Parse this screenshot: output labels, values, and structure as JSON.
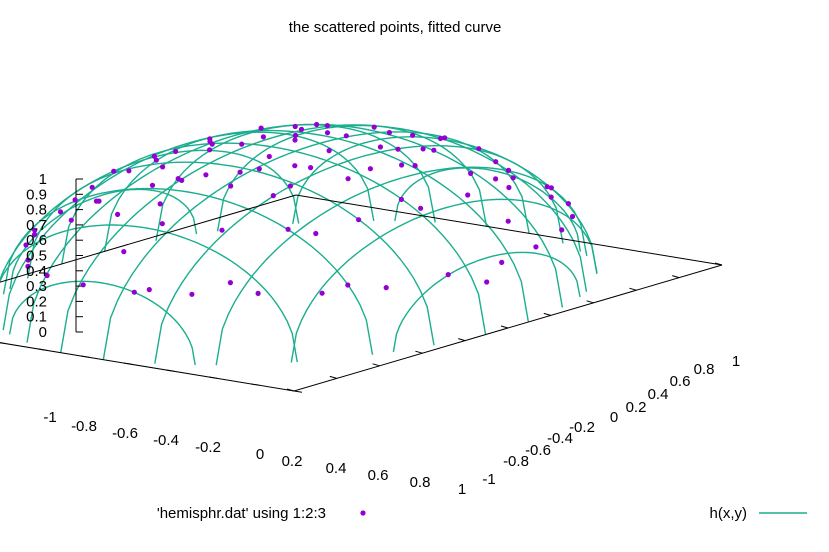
{
  "chart_data": {
    "type": "scatter",
    "title": "the scattered points, fitted curve",
    "xlabel": "",
    "ylabel": "",
    "zlabel": "",
    "xlim": [
      -1,
      1
    ],
    "ylim": [
      -1,
      1
    ],
    "zlim": [
      0,
      1
    ],
    "x_ticks": [
      "-1",
      "-0.8",
      "-0.6",
      "-0.4",
      "-0.2",
      "0",
      "0.2",
      "0.4",
      "0.6",
      "0.8",
      "1"
    ],
    "y_ticks": [
      "-1",
      "-0.8",
      "-0.6",
      "-0.4",
      "-0.2",
      "0",
      "0.2",
      "0.4",
      "0.6",
      "0.8",
      "1"
    ],
    "z_ticks": [
      "0",
      "0.1",
      "0.2",
      "0.3",
      "0.4",
      "0.5",
      "0.6",
      "0.7",
      "0.8",
      "0.9",
      "1"
    ],
    "series": [
      {
        "name": "'hemisphr.dat' using 1:2:3",
        "kind": "points",
        "color": "#9400d3",
        "points": [
          [
            -0.72,
            -0.55,
            0.42
          ],
          [
            -0.61,
            -0.68,
            0.4
          ],
          [
            -0.45,
            -0.8,
            0.38
          ],
          [
            -0.3,
            -0.86,
            0.41
          ],
          [
            -0.1,
            -0.92,
            0.38
          ],
          [
            0.12,
            -0.9,
            0.41
          ],
          [
            0.33,
            -0.85,
            0.42
          ],
          [
            0.52,
            -0.76,
            0.39
          ],
          [
            0.68,
            -0.62,
            0.4
          ],
          [
            0.8,
            -0.45,
            0.41
          ],
          [
            0.88,
            -0.25,
            0.4
          ],
          [
            0.92,
            -0.05,
            0.39
          ],
          [
            0.9,
            0.18,
            0.4
          ],
          [
            0.83,
            0.4,
            0.39
          ],
          [
            0.71,
            0.58,
            0.4
          ],
          [
            0.55,
            0.72,
            0.42
          ],
          [
            0.36,
            0.84,
            0.42
          ],
          [
            0.15,
            0.9,
            0.41
          ],
          [
            -0.08,
            0.91,
            0.41
          ],
          [
            -0.3,
            0.86,
            0.4
          ],
          [
            -0.5,
            0.75,
            0.41
          ],
          [
            -0.66,
            0.6,
            0.41
          ],
          [
            -0.8,
            0.42,
            0.4
          ],
          [
            -0.88,
            0.22,
            0.42
          ],
          [
            -0.92,
            0.0,
            0.39
          ],
          [
            -0.89,
            -0.22,
            0.41
          ],
          [
            -0.82,
            -0.4,
            0.42
          ],
          [
            -0.55,
            -0.4,
            0.73
          ],
          [
            -0.4,
            -0.55,
            0.73
          ],
          [
            -0.2,
            -0.64,
            0.74
          ],
          [
            0.0,
            -0.68,
            0.73
          ],
          [
            0.22,
            -0.64,
            0.73
          ],
          [
            0.42,
            -0.52,
            0.74
          ],
          [
            0.58,
            -0.36,
            0.73
          ],
          [
            0.66,
            -0.15,
            0.73
          ],
          [
            0.67,
            0.08,
            0.74
          ],
          [
            0.6,
            0.3,
            0.74
          ],
          [
            0.47,
            0.5,
            0.73
          ],
          [
            0.28,
            0.62,
            0.73
          ],
          [
            0.05,
            0.67,
            0.74
          ],
          [
            -0.18,
            0.65,
            0.74
          ],
          [
            -0.38,
            0.55,
            0.74
          ],
          [
            -0.55,
            0.4,
            0.73
          ],
          [
            -0.65,
            0.2,
            0.73
          ],
          [
            -0.68,
            -0.02,
            0.73
          ],
          [
            -0.63,
            -0.24,
            0.73
          ],
          [
            -0.38,
            -0.22,
            0.9
          ],
          [
            -0.25,
            -0.35,
            0.9
          ],
          [
            -0.05,
            -0.42,
            0.9
          ],
          [
            0.15,
            -0.4,
            0.9
          ],
          [
            0.32,
            -0.28,
            0.9
          ],
          [
            0.42,
            -0.08,
            0.9
          ],
          [
            0.4,
            0.15,
            0.9
          ],
          [
            0.3,
            0.32,
            0.9
          ],
          [
            0.12,
            0.42,
            0.9
          ],
          [
            -0.1,
            0.43,
            0.89
          ],
          [
            -0.28,
            0.34,
            0.9
          ],
          [
            -0.4,
            0.16,
            0.9
          ],
          [
            -0.44,
            -0.04,
            0.89
          ],
          [
            -0.12,
            -0.15,
            0.98
          ],
          [
            0.08,
            -0.16,
            0.98
          ],
          [
            0.18,
            0.02,
            0.98
          ],
          [
            0.06,
            0.18,
            0.98
          ],
          [
            -0.15,
            0.1,
            0.98
          ],
          [
            0.0,
            0.0,
            1.0
          ],
          [
            -0.85,
            -0.3,
            0.43
          ],
          [
            -0.76,
            -0.5,
            0.41
          ],
          [
            0.05,
            -0.95,
            0.31
          ],
          [
            0.4,
            -0.8,
            0.45
          ],
          [
            0.95,
            0.05,
            0.31
          ],
          [
            0.75,
            0.5,
            0.43
          ],
          [
            0.2,
            0.88,
            0.43
          ],
          [
            -0.45,
            0.8,
            0.4
          ],
          [
            -0.95,
            0.1,
            0.3
          ],
          [
            -0.6,
            0.62,
            0.5
          ],
          [
            0.62,
            -0.58,
            0.53
          ],
          [
            -0.3,
            -0.78,
            0.55
          ],
          [
            0.8,
            -0.2,
            0.57
          ],
          [
            0.45,
            0.75,
            0.48
          ],
          [
            -0.78,
            0.0,
            0.62
          ],
          [
            0.0,
            0.8,
            0.6
          ],
          [
            -0.5,
            -0.5,
            0.71
          ],
          [
            0.55,
            0.45,
            0.7
          ],
          [
            0.5,
            -0.5,
            0.71
          ],
          [
            -0.55,
            0.48,
            0.68
          ],
          [
            -0.6,
            -0.2,
            0.77
          ],
          [
            0.6,
            0.1,
            0.79
          ],
          [
            0.1,
            -0.6,
            0.79
          ],
          [
            -0.05,
            0.58,
            0.81
          ],
          [
            -0.3,
            -0.45,
            0.84
          ],
          [
            0.3,
            0.4,
            0.87
          ],
          [
            0.35,
            -0.3,
            0.89
          ],
          [
            -0.4,
            0.25,
            0.88
          ],
          [
            0.2,
            0.2,
            0.96
          ],
          [
            -0.2,
            -0.2,
            0.96
          ],
          [
            0.25,
            -0.15,
            0.95
          ],
          [
            -0.22,
            0.18,
            0.96
          ]
        ]
      },
      {
        "name": "h(x,y)",
        "kind": "surface",
        "color": "#1aae8e",
        "formula": "sqrt(1 - x^2 - y^2)"
      }
    ],
    "legend": "bottom",
    "grid": false
  }
}
